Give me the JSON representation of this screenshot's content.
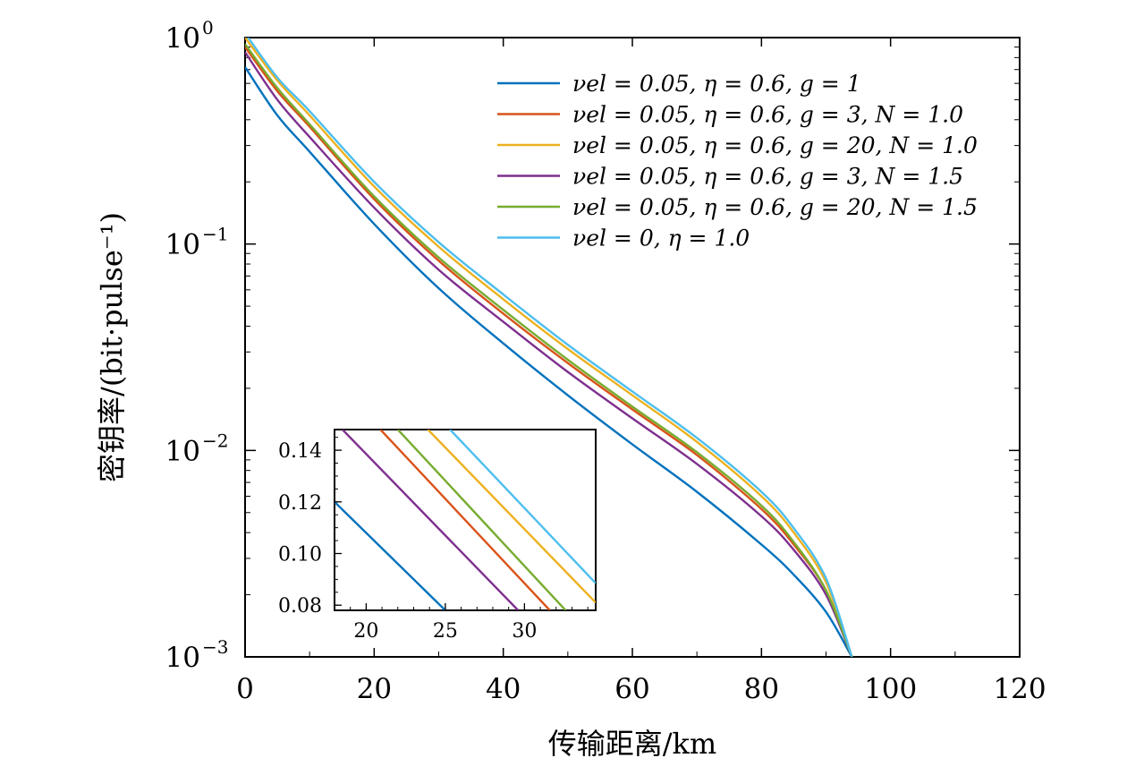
{
  "chart_data": {
    "type": "line",
    "xlabel": "传输距离/km",
    "ylabel": "密钥率/(bit·pulse⁻¹)",
    "xlim": [
      0,
      120
    ],
    "ylim": [
      0.001,
      1
    ],
    "yscale": "log",
    "xticks": [
      "0",
      "20",
      "40",
      "60",
      "80",
      "100",
      "120"
    ],
    "yticks": [
      {
        "base": "10",
        "exp": "0",
        "value": 1
      },
      {
        "base": "10",
        "exp": "−1",
        "value": 0.1
      },
      {
        "base": "10",
        "exp": "−2",
        "value": 0.01
      },
      {
        "base": "10",
        "exp": "−3",
        "value": 0.001
      }
    ],
    "legend_position": "top-right",
    "grid": false,
    "series": [
      {
        "name": "νel = 0.05, η = 0.6, g = 1",
        "color": "#0072BD",
        "x": [
          0,
          5,
          10,
          20,
          30,
          40,
          50,
          60,
          70,
          80,
          85,
          90,
          94
        ],
        "y": [
          0.72,
          0.42,
          0.28,
          0.125,
          0.061,
          0.033,
          0.0185,
          0.0107,
          0.0063,
          0.0035,
          0.0025,
          0.00165,
          0.001
        ]
      },
      {
        "name": "νel = 0.05, η = 0.6, g = 3, N = 1.0",
        "color": "#D95319",
        "x": [
          0,
          5,
          10,
          20,
          30,
          40,
          50,
          60,
          70,
          80,
          85,
          90,
          94
        ],
        "y": [
          0.9,
          0.55,
          0.37,
          0.165,
          0.083,
          0.046,
          0.0265,
          0.0158,
          0.0095,
          0.0052,
          0.0035,
          0.0021,
          0.001
        ]
      },
      {
        "name": "νel = 0.05, η = 0.6, g = 20, N = 1.0",
        "color": "#EDB120",
        "x": [
          0,
          5,
          10,
          20,
          30,
          40,
          50,
          60,
          70,
          80,
          85,
          90,
          94
        ],
        "y": [
          1.0,
          0.62,
          0.42,
          0.19,
          0.097,
          0.054,
          0.031,
          0.0185,
          0.011,
          0.006,
          0.004,
          0.0023,
          0.001
        ]
      },
      {
        "name": "νel = 0.05, η = 0.6, g = 3, N = 1.5",
        "color": "#7E2F8E",
        "x": [
          0,
          5,
          10,
          20,
          30,
          40,
          50,
          60,
          70,
          80,
          85,
          90,
          94
        ],
        "y": [
          0.85,
          0.5,
          0.33,
          0.15,
          0.075,
          0.042,
          0.024,
          0.0143,
          0.0086,
          0.0048,
          0.0033,
          0.002,
          0.001
        ]
      },
      {
        "name": "νel = 0.05, η = 0.6, g = 20, N = 1.5",
        "color": "#77AC30",
        "x": [
          0,
          5,
          10,
          20,
          30,
          40,
          50,
          60,
          70,
          80,
          85,
          90,
          94
        ],
        "y": [
          0.93,
          0.57,
          0.38,
          0.17,
          0.086,
          0.048,
          0.0275,
          0.0163,
          0.0098,
          0.0054,
          0.0036,
          0.0021,
          0.001
        ]
      },
      {
        "name": "νel = 0, η = 1.0",
        "color": "#4DBEEE",
        "x": [
          0,
          5,
          10,
          20,
          30,
          40,
          50,
          60,
          70,
          80,
          85,
          90,
          94
        ],
        "y": [
          1.05,
          0.64,
          0.44,
          0.2,
          0.102,
          0.057,
          0.0325,
          0.0193,
          0.0115,
          0.0063,
          0.0042,
          0.0024,
          0.001
        ]
      }
    ],
    "inset": {
      "type": "line",
      "xlim": [
        18,
        34.5
      ],
      "ylim": [
        0.078,
        0.148
      ],
      "xticks": [
        "20",
        "25",
        "30"
      ],
      "yticks": [
        "0.08",
        "0.10",
        "0.12",
        "0.14"
      ],
      "series": [
        {
          "color": "#0072BD",
          "x": [
            18,
            25
          ],
          "y": [
            0.12,
            0.078
          ]
        },
        {
          "color": "#7E2F8E",
          "x": [
            18.5,
            29.6
          ],
          "y": [
            0.148,
            0.078
          ]
        },
        {
          "color": "#D95319",
          "x": [
            20.9,
            31.6
          ],
          "y": [
            0.148,
            0.078
          ]
        },
        {
          "color": "#77AC30",
          "x": [
            22,
            32.6
          ],
          "y": [
            0.148,
            0.078
          ]
        },
        {
          "color": "#EDB120",
          "x": [
            23.9,
            34.5
          ],
          "y": [
            0.148,
            0.081
          ]
        },
        {
          "color": "#4DBEEE",
          "x": [
            25.3,
            34.5
          ],
          "y": [
            0.148,
            0.0885
          ]
        }
      ]
    }
  }
}
